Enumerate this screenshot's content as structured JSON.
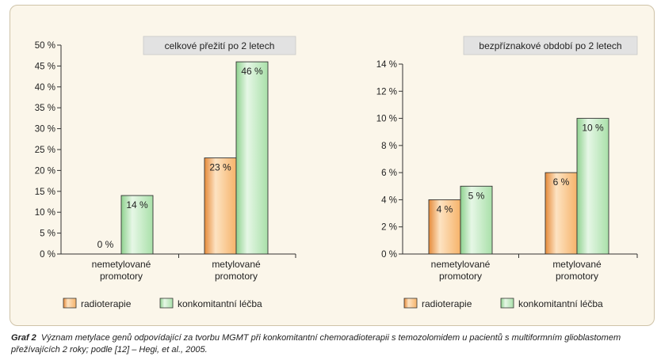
{
  "caption": {
    "label": "Graf 2",
    "text": "Význam metylace genů odpovídající za tvorbu MGMT při konkomitantní chemoradioterapii s temozolomidem u pacientů s multiformním glioblastomem přežívajících 2 roky; podle [12] – Hegi, et al., 2005."
  },
  "legend": [
    "radioterapie",
    "konkomitantní léčba"
  ],
  "colors": {
    "radioterapie": "#f6b36a",
    "konkomitantni": "#b9e6b9",
    "panel": "#fbf6ea",
    "title_box": "#e2e2e2"
  },
  "chart_data": [
    {
      "type": "bar",
      "title": "celkové přežití po 2 letech",
      "categories": [
        [
          "nemetylované",
          "promotory"
        ],
        [
          "metylované",
          "promotory"
        ]
      ],
      "series": [
        {
          "name": "radioterapie",
          "values": [
            0,
            23
          ],
          "labels": [
            "0 %",
            "23 %"
          ]
        },
        {
          "name": "konkomitantní léčba",
          "values": [
            14,
            46
          ],
          "labels": [
            "14 %",
            "46 %"
          ]
        }
      ],
      "ylim": [
        0,
        50
      ],
      "yticks": [
        0,
        5,
        10,
        15,
        20,
        25,
        30,
        35,
        40,
        45,
        50
      ],
      "ytick_labels": [
        "0 %",
        "5 %",
        "10 %",
        "15 %",
        "20 %",
        "25 %",
        "30 %",
        "35 %",
        "40 %",
        "45 %",
        "50 %"
      ],
      "grid": false
    },
    {
      "type": "bar",
      "title": "bezpříznakové období po 2 letech",
      "categories": [
        [
          "nemetylované",
          "promotory"
        ],
        [
          "metylované",
          "promotory"
        ]
      ],
      "series": [
        {
          "name": "radioterapie",
          "values": [
            4,
            6
          ],
          "labels": [
            "4 %",
            "6 %"
          ]
        },
        {
          "name": "konkomitantní léčba",
          "values": [
            5,
            10
          ],
          "labels": [
            "5 %",
            "10 %"
          ]
        }
      ],
      "ylim": [
        0,
        14
      ],
      "yticks": [
        0,
        2,
        4,
        6,
        8,
        10,
        12,
        14
      ],
      "ytick_labels": [
        "0 %",
        "2 %",
        "4 %",
        "6 %",
        "8 %",
        "10 %",
        "12 %",
        "14 %"
      ],
      "grid": false
    }
  ]
}
